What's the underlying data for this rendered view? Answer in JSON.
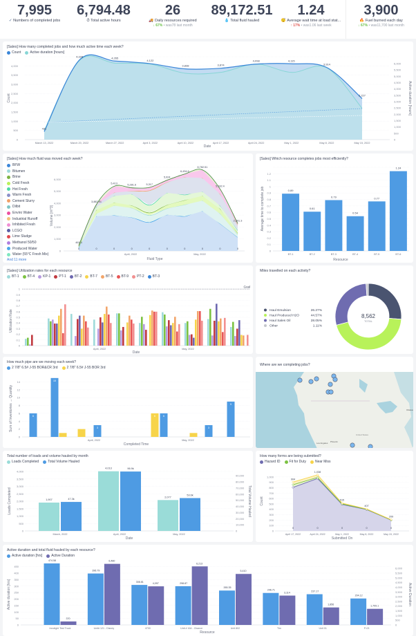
{
  "kpis": [
    {
      "value": "7,995",
      "label": "Numbers of completed jobs",
      "icon": "check-icon"
    },
    {
      "value": "6,794.48",
      "label": "Total active hours",
      "icon": "timer-icon"
    },
    {
      "value": "26",
      "label": "Daily resources required",
      "icon": "truck-icon",
      "change_pct": "67%",
      "change_dir": "down",
      "change_text": "• was78 last month"
    },
    {
      "value": "89,172.51",
      "label": "Total fluid hauled",
      "icon": "droplet-icon"
    },
    {
      "value": "1.24",
      "label": "Average wait time at load stat...",
      "icon": "clock-face-icon",
      "change_pct": "17%",
      "change_dir": "up",
      "change_text": "• was1.06 last week"
    },
    {
      "value": "3,900",
      "label": "Fuel burned each day",
      "icon": "fire-icon",
      "change_pct": "67%",
      "change_dir": "down",
      "change_text": "• was11,700 last month"
    }
  ],
  "chart_data": [
    {
      "id": "jobs",
      "type": "area",
      "title": "[Sales] How many completed jobs and how much active time each week?",
      "xlabel": "Date",
      "ylabel": "Count",
      "y2label": "Active duration [hours]",
      "categories": [
        "March 13, 2022",
        "March 20, 2022",
        "March 27, 2022",
        "April 3, 2022",
        "April 10, 2022",
        "April 17, 2022",
        "April 24, 2022",
        "May 1, 2022",
        "May 8, 2022",
        "May 15, 2022"
      ],
      "series": [
        {
          "name": "Count",
          "color": "#3a86d8",
          "values": [
            431,
            4328,
            4265,
            4122,
            3838,
            3874,
            4098,
            4115,
            3914,
            2227
          ]
        },
        {
          "name": "Active duration [hours]",
          "color": "#88d6d6",
          "values": [
            500,
            4300,
            4150,
            4100,
            3600,
            3650,
            4100,
            3650,
            3900,
            1700
          ]
        }
      ],
      "value_labels": [
        "431",
        "4,328",
        "4,265",
        "4,122",
        "3,838",
        "3,874",
        "4,098",
        "4,115",
        "3,914",
        "2,227"
      ],
      "yticks": [
        "0",
        "500",
        "1,000",
        "1,500",
        "2,000",
        "2,500",
        "3,000",
        "3,500",
        "4,000"
      ],
      "y2ticks": [
        "0",
        "500",
        "1,000",
        "1,500",
        "2,000",
        "2,500",
        "3,000",
        "3,500",
        "4,000",
        "4,500",
        "5,000",
        "5,500",
        "6,000"
      ],
      "ylim": [
        0,
        4500
      ]
    },
    {
      "id": "fluid",
      "type": "area",
      "title": "[Sales] How much fluid was moved each week?",
      "xlabel": "Fluid Type",
      "ylabel": "Volume [m^3]",
      "legend": [
        {
          "name": "BFW",
          "color": "#3a86d8"
        },
        {
          "name": "Bitumen",
          "color": "#9fdada"
        },
        {
          "name": "Brine",
          "color": "#7cb342"
        },
        {
          "name": "Cold Fresh",
          "color": "#b8f25a"
        },
        {
          "name": "Hot Fresh",
          "color": "#4cd9a8"
        },
        {
          "name": "Warm Fresh",
          "color": "#8b8fc8"
        },
        {
          "name": "Cement Slurry",
          "color": "#f0a068"
        },
        {
          "name": "Dilbit",
          "color": "#7ec4c4"
        },
        {
          "name": "Enviro Water",
          "color": "#ec4fa0"
        },
        {
          "name": "Industrial Runoff",
          "color": "#f2c27a"
        },
        {
          "name": "Inhibited Fresh",
          "color": "#f08fd4"
        },
        {
          "name": "LCGO",
          "color": "#5b5ea6"
        },
        {
          "name": "Lime Sludge",
          "color": "#e0484e"
        },
        {
          "name": "Methanol 50/50",
          "color": "#b07ee0"
        },
        {
          "name": "Produced Water",
          "color": "#4aa8e8"
        },
        {
          "name": "Water (55°C Fresh Mix)",
          "color": "#7ee8c0"
        }
      ],
      "more_label": "And 11 more",
      "xticks": [
        "April, 2022",
        "May, 2022"
      ],
      "yticks": [
        "0",
        "1,000",
        "2,000",
        "3,000",
        "4,000",
        "5,000",
        "6,000"
      ],
      "totals": [
        461.4,
        3882.91,
        5413,
        5281.6,
        5317,
        5924,
        6434.6,
        6782.51,
        5182.4,
        2291.3
      ],
      "total_labels": [
        "461.4",
        "3,882.91",
        "5,413",
        "5,281.6",
        "5,317",
        "5,924",
        "6,434.6",
        "6,782.51",
        "5,182.4",
        "2,291.3"
      ],
      "zero_labels": [
        "0",
        "0",
        "0",
        "0",
        "0",
        "0",
        "0",
        "0",
        "0",
        "0"
      ],
      "ylim": [
        0,
        7000
      ]
    },
    {
      "id": "efficiency",
      "type": "bar",
      "title": "[Sales] Which resource completes jobs most efficiently?",
      "xlabel": "Resource",
      "ylabel": "Average time to complete job",
      "categories": [
        "BT-1",
        "BT-2",
        "BT-3",
        "BT-4",
        "BT-5",
        "BT-6"
      ],
      "values": [
        0.89,
        0.61,
        0.79,
        0.54,
        0.77,
        1.24
      ],
      "value_labels": [
        "0.89",
        "0.61",
        "0.79",
        "0.54",
        "0.77",
        "1.24"
      ],
      "yticks": [
        "0",
        "0.1",
        "0.2",
        "0.3",
        "0.4",
        "0.5",
        "0.6",
        "0.7",
        "0.8",
        "0.9",
        "1",
        "1.1",
        "1.2"
      ],
      "ylim": [
        0,
        1.3
      ],
      "color": "#4e9be3"
    },
    {
      "id": "utilization",
      "type": "bar",
      "title": "[Sales] Utilization rates for each resource",
      "xlabel": "Date",
      "ylabel": "Utilization Rate",
      "goal_label": "Goal",
      "goal": 1,
      "xticks": [
        "April, 2022",
        "May, 2022"
      ],
      "yticks": [
        "0",
        "0.1",
        "0.2",
        "0.3",
        "0.4",
        "0.5",
        "0.6",
        "0.7",
        "0.8",
        "0.9",
        "1"
      ],
      "ylim": [
        0,
        1.05
      ],
      "series": [
        {
          "name": "BT-1",
          "color": "#9fdada"
        },
        {
          "name": "BT-4",
          "color": "#7cc242"
        },
        {
          "name": "KP-1",
          "color": "#b79be0"
        },
        {
          "name": "PT-1",
          "color": "#c0393f"
        },
        {
          "name": "BT-2",
          "color": "#6d68b0"
        },
        {
          "name": "BT-7",
          "color": "#f7d44a"
        },
        {
          "name": "BT-5",
          "color": "#f2a56a"
        },
        {
          "name": "BT-9",
          "color": "#e85656"
        },
        {
          "name": "PT-2",
          "color": "#f29090"
        },
        {
          "name": "BT-3",
          "color": "#3a86d8"
        }
      ],
      "groups": [
        [
          0.12,
          0.14,
          0.02,
          0.19,
          0,
          0,
          0,
          0,
          0,
          0
        ],
        [
          0.48,
          0.43,
          0.46,
          0.39,
          0.39,
          0.53,
          0.65,
          0.22,
          0.73,
          0
        ],
        [
          0.56,
          0,
          0.17,
          0.47,
          0.53,
          0.3,
          0.53,
          0.43,
          0.32,
          0
        ],
        [
          0.46,
          0,
          0.3,
          0.5,
          0.41,
          0.56,
          0.69,
          0.55,
          0.4,
          0
        ],
        [
          0.57,
          0.57,
          0.27,
          0.33,
          0,
          0.41,
          0.53,
          0.46,
          0.39,
          0
        ],
        [
          0.4,
          0.51,
          0.38,
          0.28,
          0,
          0.54,
          0.62,
          0.6,
          0.6,
          0
        ],
        [
          0.59,
          0.55,
          0.34,
          0.45,
          0.36,
          0.4,
          0.51,
          0.25,
          0.38,
          0
        ],
        [
          0.4,
          0.43,
          0.19,
          0.2,
          0.14,
          0.46,
          0.61,
          0.61,
          0.44,
          0
        ],
        [
          0.47,
          0.65,
          0.18,
          0.44,
          0.74,
          0.43,
          0.48,
          0.24,
          0.49,
          0
        ],
        [
          0.33,
          0.42,
          0.17,
          0.3,
          0.45,
          0.19,
          0.18,
          0,
          0.19,
          0
        ]
      ]
    },
    {
      "id": "miles",
      "type": "pie",
      "title": "Miles travelled on each activity?",
      "total": "8,562",
      "total_label": "TOTAL",
      "slices": [
        {
          "name": "Haul Emulsion",
          "pct": 26.27,
          "label": "26.27%",
          "color": "#4a5470"
        },
        {
          "name": "Haul Produced H2O",
          "pct": 44.57,
          "label": "44.57%",
          "color": "#b8f25a"
        },
        {
          "name": "Haul Sales Oil",
          "pct": 28.05,
          "label": "28.05%",
          "color": "#6f6cb0"
        },
        {
          "name": "Other",
          "pct": 1.11,
          "label": "1.11%",
          "color": "#c4c6cc"
        }
      ]
    },
    {
      "id": "pipe",
      "type": "bar",
      "title": "How much pipe are we moving each week?",
      "xlabel": "Completed Time",
      "ylabel": "Sum of Inventories → Quantity",
      "xticks": [
        "April, 2022",
        "May, 2022"
      ],
      "yticks": [
        "0",
        "2",
        "4",
        "6",
        "8",
        "10",
        "12",
        "14"
      ],
      "ylim": [
        0,
        15.5
      ],
      "series": [
        {
          "name": "2 7/8\" 6.5# J-55 BOR&CR 3rd",
          "color": "#4e9be3"
        },
        {
          "name": "2 7/8\" 6.5# J-55 BOR 3rd",
          "color": "#f7d44a"
        }
      ],
      "weeks": [
        {
          "blue": 6,
          "yellow": 0
        },
        {
          "blue": 15,
          "yellow": 1
        },
        {
          "blue": 3,
          "yellow": 2
        },
        {
          "blue": 0,
          "yellow": 0
        },
        {
          "blue": 6,
          "yellow": 6
        },
        {
          "blue": 3,
          "yellow": 1
        },
        {
          "blue": 9,
          "yellow": 0
        }
      ]
    },
    {
      "id": "loads",
      "type": "bar",
      "title": "Total number of loads and volume hauled by month",
      "xlabel": "Date",
      "ylabel": "Loads Completed",
      "y2label": "Total Volume Hauled",
      "categories": [
        "March, 2022",
        "April, 2022",
        "May, 2022"
      ],
      "series": [
        {
          "name": "Loads Completed",
          "color": "#9adcd8",
          "values": [
            1907,
            4013,
            2077
          ],
          "labels": [
            "1,907",
            "4,013",
            "2,077"
          ]
        },
        {
          "name": "Total Volume Hauled",
          "color": "#4e9be3",
          "values": [
            47300,
            96900,
            53600
          ],
          "labels": [
            "47.3k",
            "96.9k",
            "53.6k"
          ]
        }
      ],
      "yticks": [
        "0",
        "500",
        "1,000",
        "1,500",
        "2,000",
        "2,500",
        "3,000",
        "3,500",
        "4,000"
      ],
      "y2ticks": [
        "0",
        "10,000",
        "20,000",
        "30,000",
        "40,000",
        "50,000",
        "60,000",
        "70,000",
        "80,000",
        "90,000"
      ],
      "ylim": [
        0,
        4000
      ],
      "y2lim": [
        0,
        97000
      ]
    },
    {
      "id": "forms",
      "type": "area",
      "title": "How many forms are being submitted?",
      "xlabel": "Submitted On",
      "ylabel": "Count",
      "categories": [
        "April 17, 2022",
        "April 24, 2022",
        "May 1, 2022",
        "May 8, 2022",
        "May 15, 2022"
      ],
      "series": [
        {
          "name": "Hazard ID",
          "color": "#6f6cb0",
          "values": [
            805,
            970,
            490,
            395,
            200
          ]
        },
        {
          "name": "Fit for Duty",
          "color": "#7cc242",
          "values": [
            855,
            990,
            500,
            400,
            203
          ]
        },
        {
          "name": "Near Miss",
          "color": "#f7d44a",
          "values": [
            904,
            1038,
            515,
            407,
            209
          ]
        }
      ],
      "top_labels": [
        "904",
        "1,038",
        "515",
        "407",
        "209"
      ],
      "zero_labels": [
        "0",
        "0",
        "0",
        "0",
        "0"
      ],
      "yticks": [
        "0",
        "100",
        "200",
        "300",
        "400",
        "500",
        "600",
        "700",
        "800",
        "900",
        "1,000"
      ],
      "ylim": [
        0,
        1100
      ]
    },
    {
      "id": "resource-duration",
      "type": "bar",
      "title": "Active duration and total fluid hauled by each resource?",
      "xlabel": "Resource",
      "ylabel": "Active duration [hrs]",
      "y2label": "Active Duration",
      "categories": [
        "Innolight Test Truck",
        "Unit# 121 - Disney",
        "4700",
        "Unit # 164 - Chance",
        "Unit 802",
        "Tim",
        "Unit 01",
        "P-03"
      ],
      "series": [
        {
          "name": "Active duration [hrs]",
          "color": "#4e9be3",
          "values": [
            474.58,
            396.79,
            308.81,
            298.87,
            265.35,
            246.71,
            237.17,
            204.12
          ],
          "labels": [
            "474.58",
            "396.79",
            "308.81",
            "298.87",
            "265.35",
            "246.71",
            "237.17",
            "204.12"
          ]
        },
        {
          "name": "Active Duration",
          "color": "#6f6cb0",
          "values": [
            370,
            6480,
            4097,
            6213,
            5410,
            3114,
            1856,
            1709.1
          ],
          "labels": [
            "370",
            "6,480",
            "4,097",
            "6,213",
            "5,410",
            "3,114",
            "1,856",
            "1,709.1"
          ]
        }
      ],
      "yticks": [
        "0",
        "50",
        "100",
        "150",
        "200",
        "250",
        "300",
        "350",
        "400",
        "450"
      ],
      "y2ticks": [
        "0",
        "500",
        "1,000",
        "1,500",
        "2,000",
        "2,500",
        "3,000",
        "3,500",
        "4,000",
        "4,500",
        "5,000",
        "5,500",
        "6,000"
      ],
      "ylim": [
        0,
        480
      ],
      "y2lim": [
        0,
        6600
      ]
    }
  ],
  "map": {
    "title": "Where are we completing jobs?",
    "labels": [
      "Los Angeles",
      "Phoenix",
      "United States",
      "Ottawa"
    ]
  }
}
